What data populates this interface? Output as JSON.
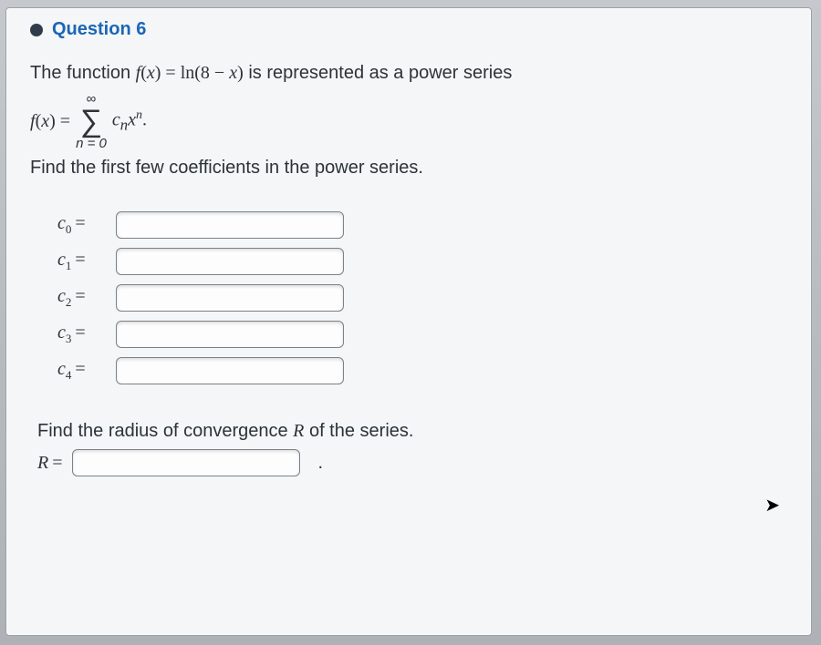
{
  "question": {
    "number_label": "Question 6",
    "prompt_prefix": "The function ",
    "function_expr": "f(x) = ln(8 − x)",
    "prompt_suffix": " is represented as a power series",
    "series_lhs": "f(x) = ",
    "sigma_top": "∞",
    "sigma_bottom": "n = 0",
    "series_term": "cₙxⁿ.",
    "instruction": "Find the first few coefficients in the power series.",
    "coefficients": [
      {
        "name": "c0",
        "sub": "0"
      },
      {
        "name": "c1",
        "sub": "1"
      },
      {
        "name": "c2",
        "sub": "2"
      },
      {
        "name": "c3",
        "sub": "3"
      },
      {
        "name": "c4",
        "sub": "4"
      }
    ],
    "radius_prompt_prefix": "Find the radius of convergence ",
    "radius_var": "R",
    "radius_prompt_suffix": " of the series.",
    "radius_label": "R"
  },
  "style": {
    "accent_color": "#1b66b5",
    "bullet_color": "#2f3a4a",
    "input_border": "#7b8187",
    "card_bg": "#f4f6f7",
    "frame_bg": "#b8bcc0",
    "title_fontsize": 20,
    "body_fontsize": 20,
    "input_width": 250,
    "input_height": 30
  }
}
